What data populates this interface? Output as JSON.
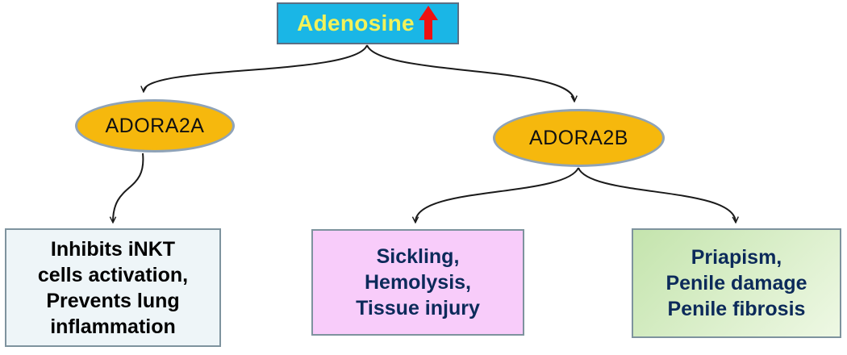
{
  "diagram": {
    "root": {
      "label": "Adenosine",
      "indicator_icon": "up-arrow-icon",
      "indicator_color": "#ee1111"
    },
    "receptors": [
      {
        "label": "ADORA2A"
      },
      {
        "label": "ADORA2B"
      }
    ],
    "outcomes": [
      {
        "lines": [
          "Inhibits iNKT",
          "cells activation,",
          "Prevents lung",
          "inflammation"
        ]
      },
      {
        "lines": [
          "Sickling,",
          "Hemolysis,",
          "Tissue injury"
        ]
      },
      {
        "lines": [
          "Priapism,",
          "Penile damage",
          "Penile fibrosis"
        ]
      }
    ],
    "colors": {
      "root_fill": "#1ab6e6",
      "root_text": "#f2f25a",
      "receptor_fill": "#f6b80d",
      "outcome_1_fill": "#eef5f8",
      "outcome_2_fill": "#f8ccfa",
      "outcome_3_fill": "#c4e4ad",
      "outcome_text": "#0c2a5a"
    }
  }
}
